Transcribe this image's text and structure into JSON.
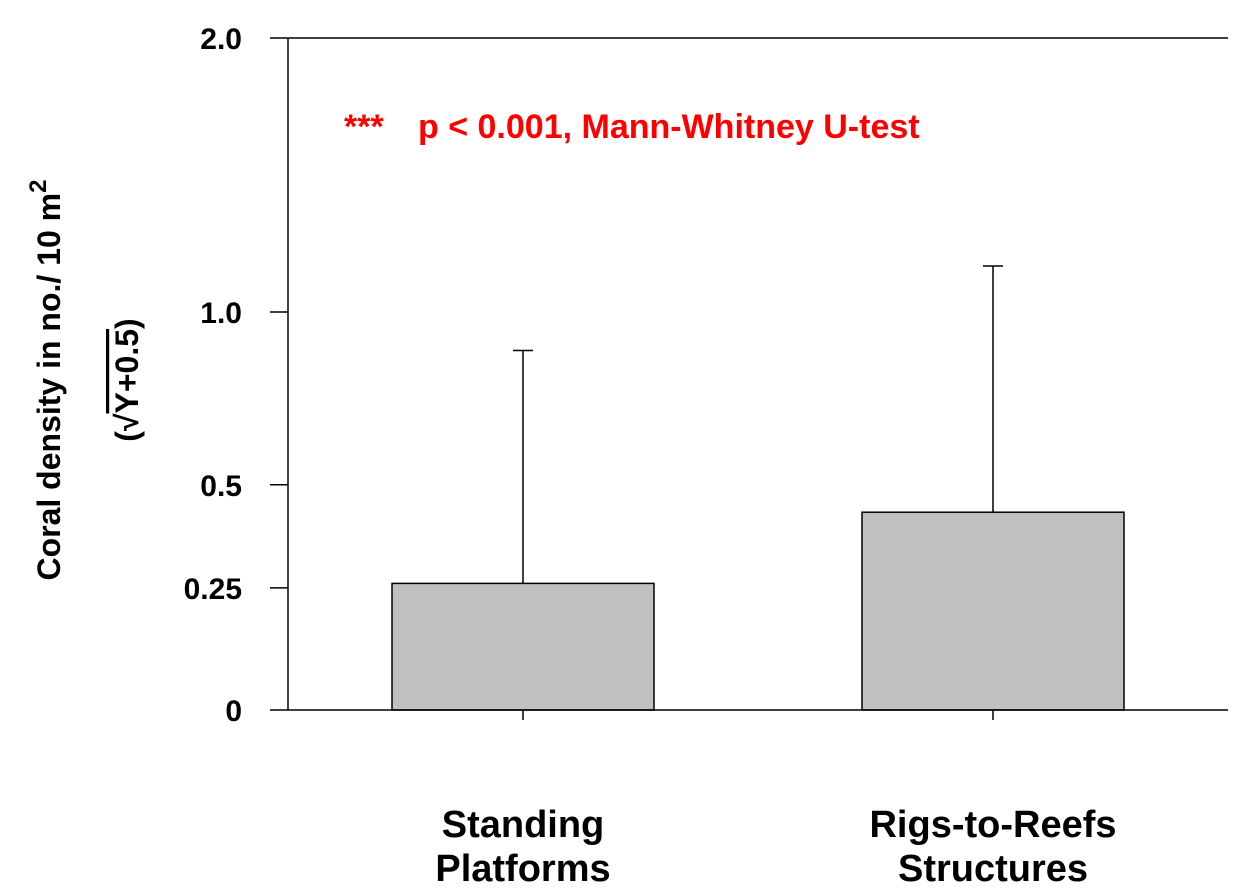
{
  "chart_data": {
    "type": "bar",
    "categories": [
      [
        "Standing",
        "Platforms"
      ],
      [
        "Rigs-to-Reefs",
        "Structures"
      ]
    ],
    "values": [
      0.26,
      0.43
    ],
    "error_upper": [
      0.88,
      1.15
    ],
    "yticks": [
      {
        "value": 0,
        "label": "0"
      },
      {
        "value": 0.25,
        "label": "0.25"
      },
      {
        "value": 0.5,
        "label": "0.5"
      },
      {
        "value": 1.0,
        "label": "1.0"
      },
      {
        "value": 2.0,
        "label": "2.0"
      }
    ],
    "y_scale": "sqrt(Y+0.5)",
    "ylim": [
      0,
      2.0
    ],
    "ylabel": {
      "line1_main": "Coral density in no./ 10 m",
      "line1_sup": "2",
      "line2_open": "(",
      "line2_root": "√",
      "line2_radicand": "Y+0.5",
      "line2_close": ")"
    },
    "annotation": {
      "stars": "***",
      "text": "p < 0.001, Mann-Whitney U-test"
    },
    "grid": false,
    "legend": "none",
    "colors": {
      "bar_fill": "#c0c0c0",
      "bar_edge": "#000000",
      "annotation": "#ff0000"
    }
  }
}
